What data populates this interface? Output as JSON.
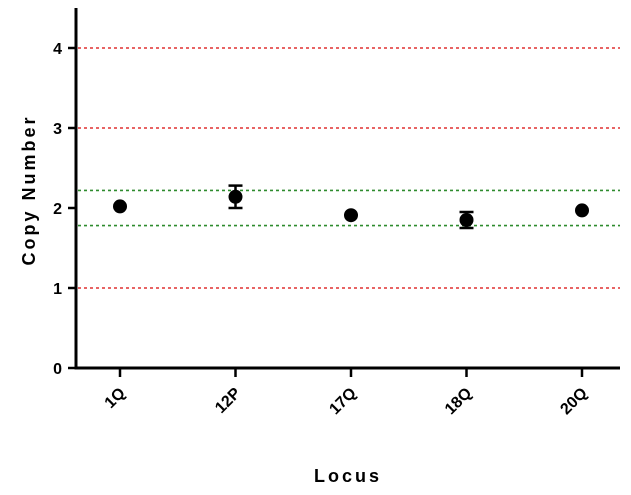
{
  "chart_data": {
    "type": "scatter",
    "title": "",
    "xlabel": "Locus",
    "ylabel": "Copy Number",
    "categories": [
      "1Q",
      "12P",
      "17Q",
      "18Q",
      "20Q"
    ],
    "series": [
      {
        "values": [
          2.02,
          2.14,
          1.91,
          1.85,
          1.97
        ],
        "error": [
          0.02,
          0.14,
          0.02,
          0.1,
          0.02
        ]
      }
    ],
    "ylim": [
      0,
      4.5
    ],
    "yticks": [
      0,
      1,
      2,
      3,
      4
    ],
    "reference_lines": [
      {
        "y": 1,
        "color": "#e03030",
        "style": "dotted"
      },
      {
        "y": 3,
        "color": "#e03030",
        "style": "dotted"
      },
      {
        "y": 4,
        "color": "#e03030",
        "style": "dotted"
      },
      {
        "y": 1.78,
        "color": "#2e8b2e",
        "style": "dotted"
      },
      {
        "y": 2.22,
        "color": "#2e8b2e",
        "style": "dotted"
      }
    ],
    "marker_color": "#000000",
    "grid": false,
    "legend": "none"
  }
}
